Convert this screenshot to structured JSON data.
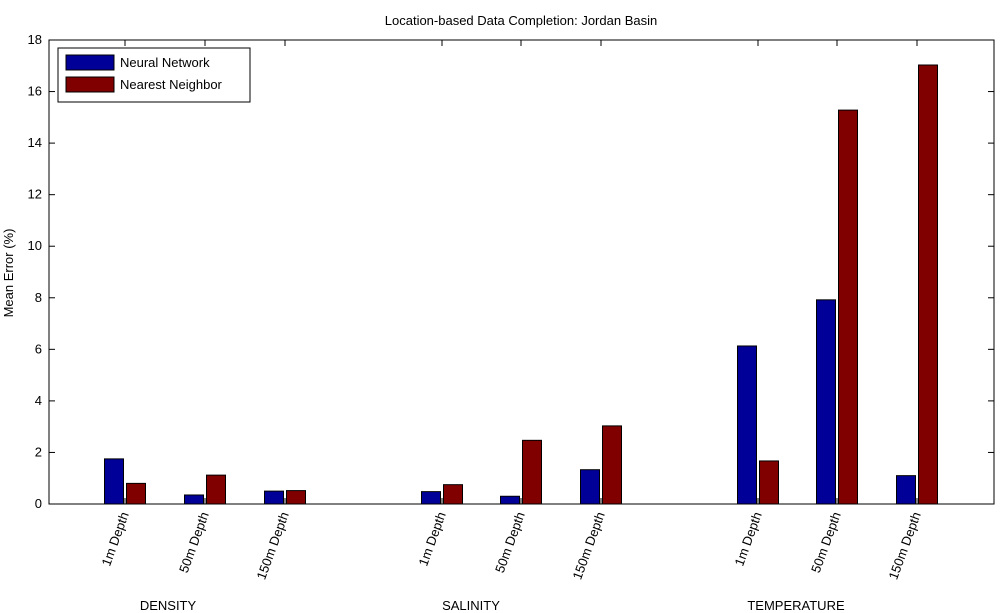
{
  "chart_data": {
    "type": "bar",
    "title": "Location-based Data Completion: Jordan Basin",
    "xlabel": "",
    "ylabel": "Mean Error (%)",
    "ylim": [
      0,
      18
    ],
    "yticks": [
      0,
      2,
      4,
      6,
      8,
      10,
      12,
      14,
      16,
      18
    ],
    "grid": false,
    "legend_position": "top-left",
    "groups": [
      {
        "label": "DENSITY",
        "categories": [
          "1m Depth",
          "50m Depth",
          "150m Depth"
        ],
        "series": [
          {
            "name": "Neural Network",
            "values": [
              1.75,
              0.35,
              0.5
            ]
          },
          {
            "name": "Nearest Neighbor",
            "values": [
              0.8,
              1.12,
              0.52
            ]
          }
        ]
      },
      {
        "label": "SALINITY",
        "categories": [
          "1m Depth",
          "50m Depth",
          "150m Depth"
        ],
        "series": [
          {
            "name": "Neural Network",
            "values": [
              0.48,
              0.3,
              1.33
            ]
          },
          {
            "name": "Nearest Neighbor",
            "values": [
              0.75,
              2.47,
              3.03
            ]
          }
        ]
      },
      {
        "label": "TEMPERATURE",
        "categories": [
          "1m Depth",
          "50m Depth",
          "150m Depth"
        ],
        "series": [
          {
            "name": "Neural Network",
            "values": [
              6.13,
              7.92,
              1.1
            ]
          },
          {
            "name": "Nearest Neighbor",
            "values": [
              1.67,
              15.28,
              17.03
            ]
          }
        ]
      }
    ],
    "series_colors": {
      "Neural Network": "#000099",
      "Nearest Neighbor": "#800000"
    },
    "legend": [
      "Neural Network",
      "Nearest Neighbor"
    ]
  }
}
